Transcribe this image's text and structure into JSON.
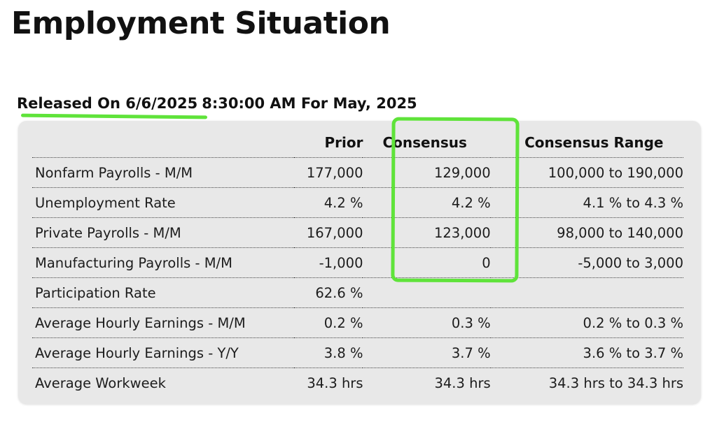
{
  "title": "Employment Situation",
  "release": {
    "label": "Released On 6/6/2025",
    "time_period": "8:30:00 AM For May, 2025"
  },
  "table": {
    "headers": [
      "",
      "Prior",
      "Consensus",
      "Consensus Range"
    ],
    "rows": [
      {
        "name": "Nonfarm Payrolls - M/M",
        "prior": "177,000",
        "consensus": "129,000",
        "range": "100,000  to 190,000"
      },
      {
        "name": "Unemployment Rate",
        "prior": "4.2 %",
        "consensus": "4.2 %",
        "range": "4.1 % to 4.3 %"
      },
      {
        "name": "Private Payrolls - M/M",
        "prior": "167,000",
        "consensus": "123,000",
        "range": "98,000  to 140,000"
      },
      {
        "name": "Manufacturing Payrolls - M/M",
        "prior": "-1,000",
        "consensus": "0",
        "range": "-5,000  to 3,000"
      },
      {
        "name": "Participation Rate",
        "prior": "62.6 %",
        "consensus": "",
        "range": ""
      },
      {
        "name": "Average Hourly Earnings - M/M",
        "prior": "0.2 %",
        "consensus": "0.3 %",
        "range": "0.2 % to 0.3 %"
      },
      {
        "name": "Average Hourly Earnings - Y/Y",
        "prior": "3.8 %",
        "consensus": "3.7 %",
        "range": "3.6 % to 3.7 %"
      },
      {
        "name": "Average Workweek",
        "prior": "34.3 hrs",
        "consensus": "34.3 hrs",
        "range": "34.3 hrs to 34.3 hrs"
      }
    ]
  },
  "colors": {
    "highlight": "#5fe33a",
    "panel": "#e8e8e8"
  }
}
